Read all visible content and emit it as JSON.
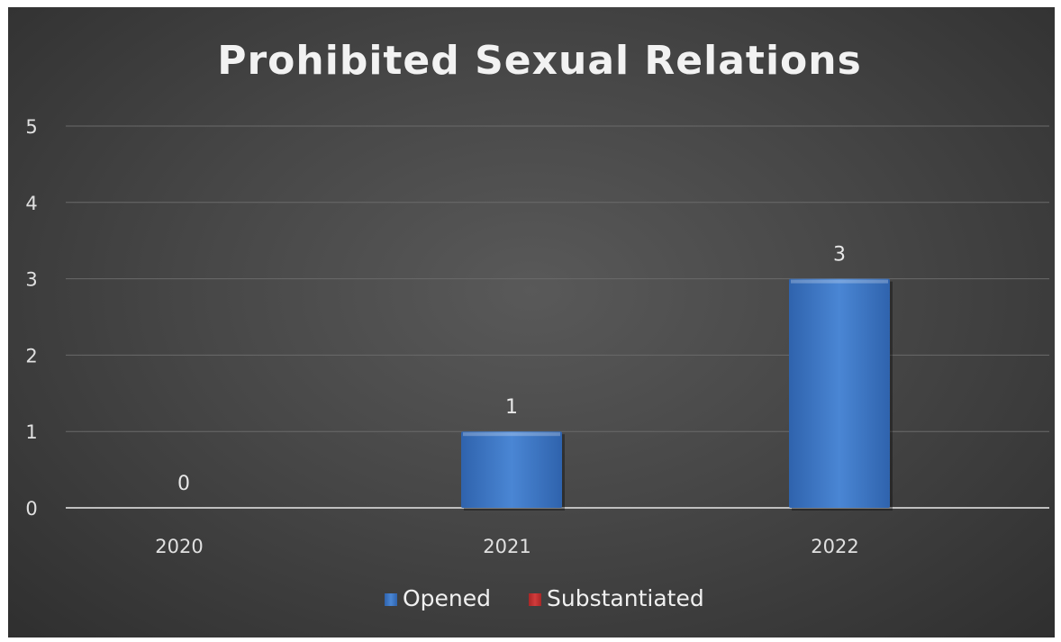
{
  "chart_data": {
    "type": "bar",
    "title": "Prohibited Sexual Relations",
    "categories": [
      "2020",
      "2021",
      "2022"
    ],
    "series": [
      {
        "name": "Opened",
        "values": [
          0,
          1,
          3
        ],
        "color": "#4a86d4"
      },
      {
        "name": "Substantiated",
        "values": [
          0,
          0,
          0
        ],
        "color": "#d23b3b"
      }
    ],
    "data_labels": [
      "0",
      "1",
      "3"
    ],
    "xlabel": "",
    "ylabel": "",
    "ylim": [
      0,
      5
    ],
    "yticks": [
      0,
      1,
      2,
      3,
      4,
      5
    ],
    "grid": true,
    "legend_position": "bottom",
    "colors": {
      "background": "#474747",
      "gridline": "#6a6a6a",
      "axis": "#bfbfbf"
    }
  }
}
